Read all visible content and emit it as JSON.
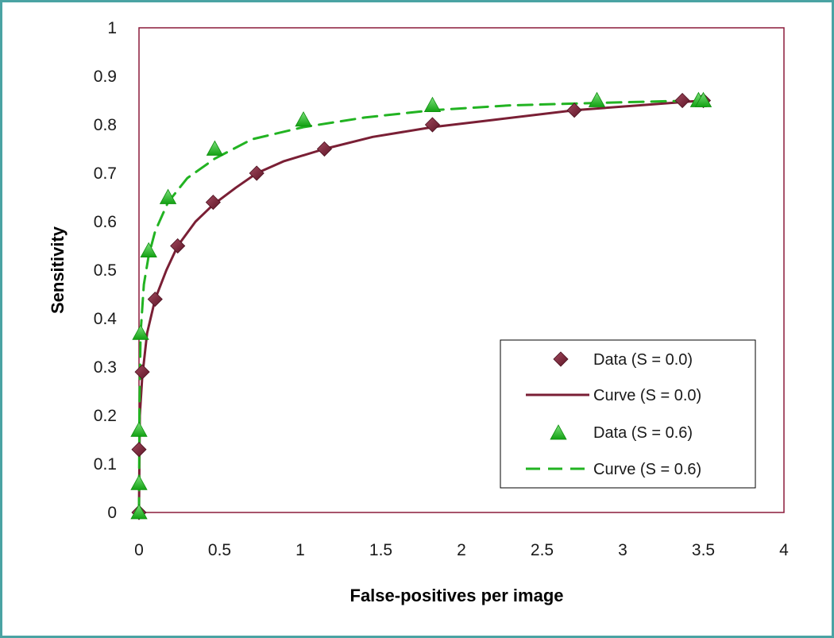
{
  "chart_data": {
    "type": "scatter",
    "title": "",
    "xlabel": "False-positives per image",
    "ylabel": "Sensitivity",
    "xlim": [
      0,
      4
    ],
    "ylim": [
      0,
      1
    ],
    "xticks": [
      "0",
      "0.5",
      "1",
      "1.5",
      "2",
      "2.5",
      "3",
      "3.5",
      "4"
    ],
    "yticks": [
      "0",
      "0.1",
      "0.2",
      "0.3",
      "0.4",
      "0.5",
      "0.6",
      "0.7",
      "0.8",
      "0.9",
      "1"
    ],
    "grid": false,
    "legend_position": "bottom-right",
    "colors": {
      "series_s00": "#7a1f35",
      "series_s06_marker": "#1fc21f",
      "series_s06_line": "#22b322",
      "plot_border": "#8b1a3a",
      "frame": "#4aa3a3"
    },
    "series": [
      {
        "name": "Data (S = 0.0)",
        "kind": "markers",
        "marker": "diamond",
        "x": [
          0.0,
          0.0,
          0.02,
          0.1,
          0.24,
          0.46,
          0.73,
          1.15,
          1.82,
          2.7,
          3.37,
          3.5
        ],
        "y": [
          0.0,
          0.13,
          0.29,
          0.44,
          0.55,
          0.64,
          0.7,
          0.75,
          0.8,
          0.83,
          0.85,
          0.85
        ]
      },
      {
        "name": "Curve (S = 0.0)",
        "kind": "line",
        "dash": "solid",
        "x": [
          0.0,
          0.005,
          0.02,
          0.05,
          0.1,
          0.17,
          0.24,
          0.35,
          0.46,
          0.6,
          0.73,
          0.9,
          1.15,
          1.45,
          1.82,
          2.2,
          2.7,
          3.1,
          3.5
        ],
        "y": [
          0.0,
          0.2,
          0.28,
          0.37,
          0.44,
          0.5,
          0.55,
          0.6,
          0.635,
          0.67,
          0.7,
          0.725,
          0.75,
          0.775,
          0.795,
          0.81,
          0.83,
          0.84,
          0.85
        ]
      },
      {
        "name": "Data (S = 0.6)",
        "kind": "markers",
        "marker": "triangle",
        "x": [
          0.0,
          0.0,
          0.0,
          0.01,
          0.06,
          0.18,
          0.47,
          1.02,
          1.82,
          2.84,
          3.47,
          3.5
        ],
        "y": [
          0.0,
          0.06,
          0.17,
          0.37,
          0.54,
          0.65,
          0.75,
          0.81,
          0.84,
          0.85,
          0.85,
          0.85
        ]
      },
      {
        "name": "Curve (S = 0.6)",
        "kind": "line",
        "dash": "dashed",
        "x": [
          0.0,
          0.003,
          0.01,
          0.03,
          0.06,
          0.1,
          0.18,
          0.3,
          0.47,
          0.7,
          1.02,
          1.4,
          1.82,
          2.3,
          2.84,
          3.2,
          3.5
        ],
        "y": [
          0.0,
          0.22,
          0.37,
          0.47,
          0.53,
          0.58,
          0.64,
          0.69,
          0.73,
          0.77,
          0.795,
          0.815,
          0.83,
          0.84,
          0.845,
          0.848,
          0.85
        ]
      }
    ]
  }
}
